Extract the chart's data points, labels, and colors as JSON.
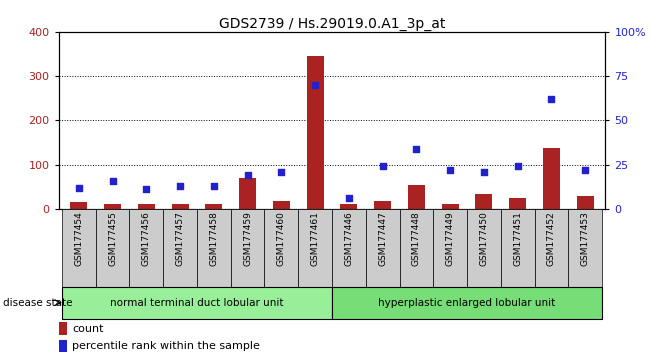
{
  "title": "GDS2739 / Hs.29019.0.A1_3p_at",
  "samples": [
    "GSM177454",
    "GSM177455",
    "GSM177456",
    "GSM177457",
    "GSM177458",
    "GSM177459",
    "GSM177460",
    "GSM177461",
    "GSM177446",
    "GSM177447",
    "GSM177448",
    "GSM177449",
    "GSM177450",
    "GSM177451",
    "GSM177452",
    "GSM177453"
  ],
  "counts": [
    15,
    12,
    10,
    12,
    10,
    70,
    17,
    345,
    12,
    17,
    55,
    12,
    33,
    25,
    138,
    30
  ],
  "percentiles": [
    12,
    16,
    11,
    13,
    13,
    19,
    21,
    70,
    6,
    24,
    34,
    22,
    21,
    24,
    62,
    22
  ],
  "group1_label": "normal terminal duct lobular unit",
  "group2_label": "hyperplastic enlarged lobular unit",
  "group1_count": 8,
  "group2_count": 8,
  "disease_state_label": "disease state",
  "bar_color": "#aa2222",
  "dot_color": "#2222cc",
  "ylim_left": [
    0,
    400
  ],
  "ylim_right": [
    0,
    100
  ],
  "yticks_left": [
    0,
    100,
    200,
    300,
    400
  ],
  "ytick_labels_right": [
    "0",
    "25",
    "50",
    "75",
    "100%"
  ],
  "bar_width": 0.5,
  "legend_count_label": "count",
  "legend_pct_label": "percentile rank within the sample",
  "group1_bg": "#99ee99",
  "group2_bg": "#77dd77",
  "sample_bg": "#cccccc"
}
